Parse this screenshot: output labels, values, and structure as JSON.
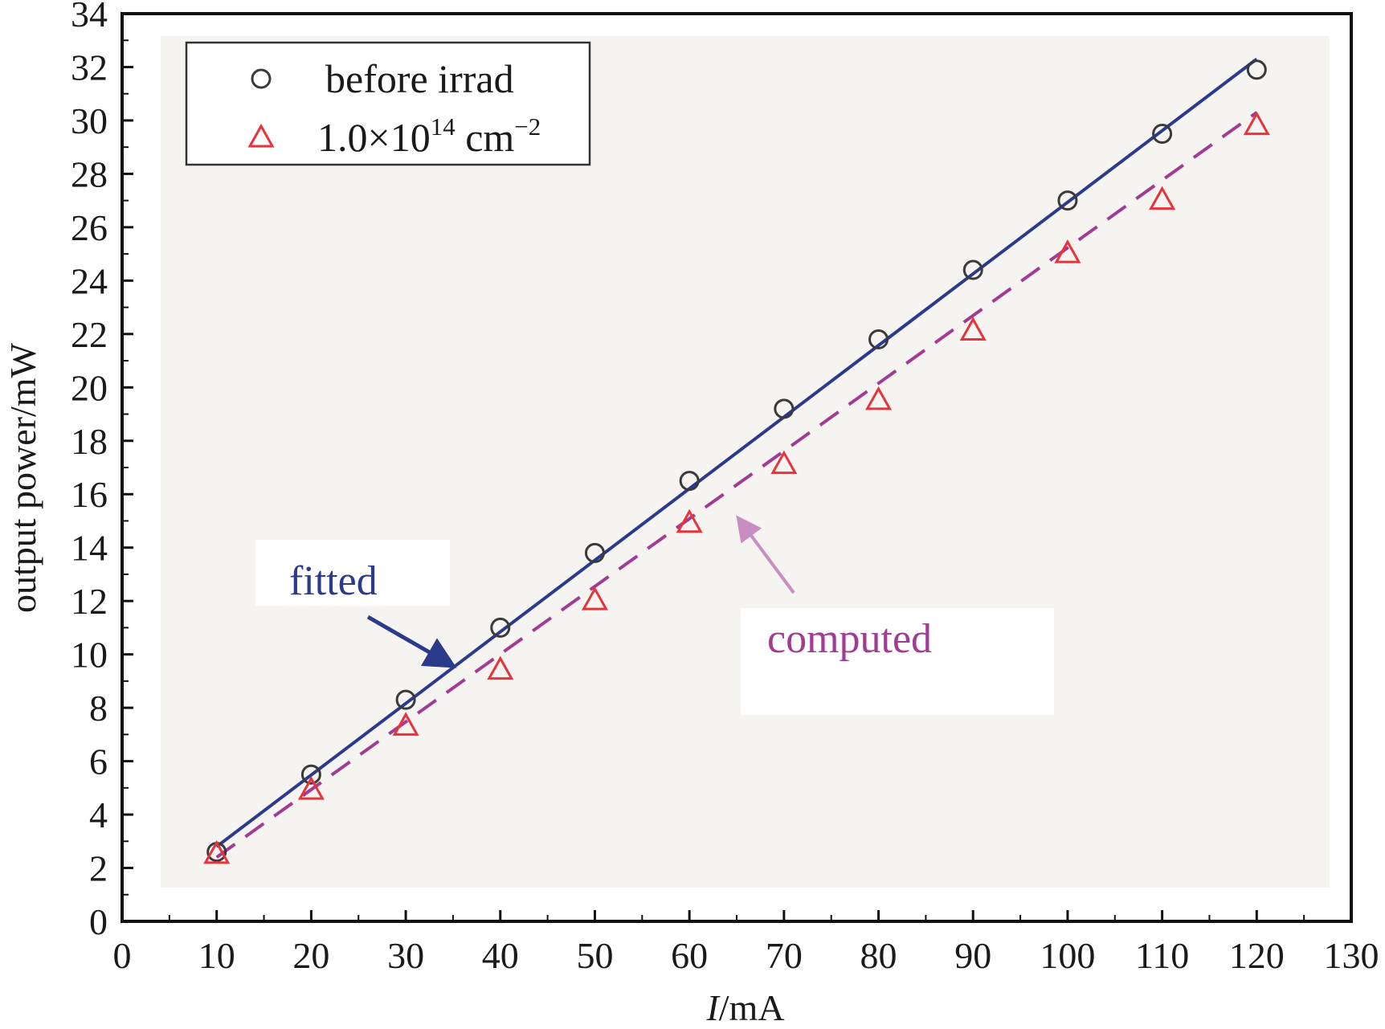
{
  "chart_data": {
    "type": "scatter",
    "xlabel_italic": "I",
    "xlabel_rest": "/mA",
    "ylabel": "output power/mW",
    "xlim": [
      0,
      130
    ],
    "ylim": [
      0,
      34
    ],
    "x_ticks": [
      0,
      10,
      20,
      30,
      40,
      50,
      60,
      70,
      80,
      90,
      100,
      110,
      120,
      130
    ],
    "y_ticks": [
      0,
      2,
      4,
      6,
      8,
      10,
      12,
      14,
      16,
      18,
      20,
      22,
      24,
      26,
      28,
      30,
      32,
      34
    ],
    "grid": false,
    "legend_position": "top-left",
    "series": [
      {
        "name": "before irrad",
        "marker": "circle",
        "color": "#3a3a3a",
        "x": [
          10,
          20,
          30,
          40,
          50,
          60,
          70,
          80,
          90,
          100,
          110,
          120
        ],
        "y": [
          2.6,
          5.5,
          8.3,
          11.0,
          13.8,
          16.5,
          19.2,
          21.8,
          24.4,
          27.0,
          29.5,
          31.9
        ]
      },
      {
        "name_base": "1.0×10",
        "name_exp": "14",
        "name_unit": " cm",
        "name_unit_exp": "−2",
        "marker": "triangle",
        "color": "#e8323c",
        "x": [
          10,
          20,
          30,
          40,
          50,
          60,
          70,
          80,
          90,
          100,
          110,
          120
        ],
        "y": [
          2.5,
          4.9,
          7.3,
          9.4,
          12.0,
          14.9,
          17.1,
          19.5,
          22.1,
          25.0,
          27.0,
          29.8
        ]
      }
    ],
    "lines": [
      {
        "label": "fitted",
        "style": "solid",
        "color": "#2c3a8c",
        "x": [
          10,
          120
        ],
        "y": [
          2.8,
          32.3
        ]
      },
      {
        "label": "computed",
        "style": "dashed",
        "color": "#a03c94",
        "x": [
          10,
          120
        ],
        "y": [
          2.4,
          30.3
        ]
      }
    ],
    "annotations": [
      {
        "text": "fitted",
        "color": "#2c3a8c",
        "target_x": 35,
        "target_y": 9.7
      },
      {
        "text": "computed",
        "color": "#a03c94",
        "target_x": 65,
        "target_y": 15.2
      }
    ]
  }
}
